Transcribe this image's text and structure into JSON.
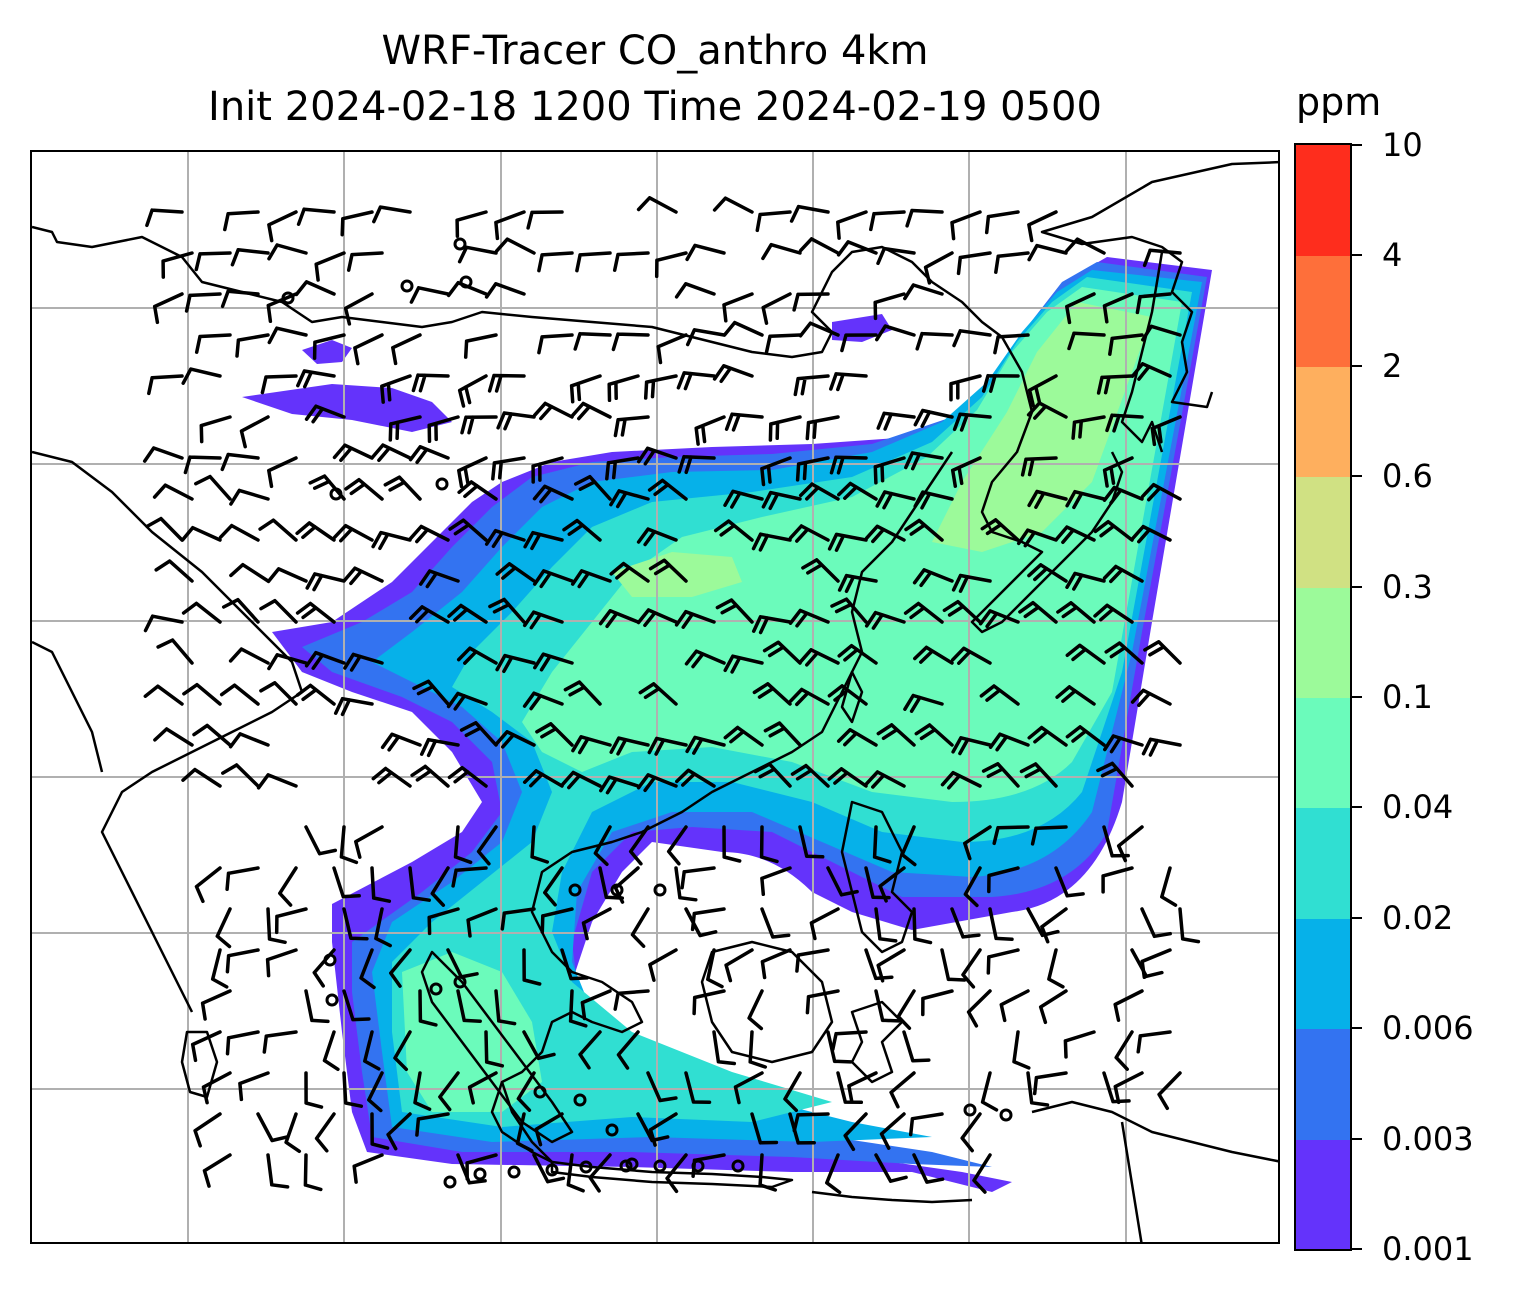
{
  "figure": {
    "title_line1": "WRF-Tracer CO_anthro 4km",
    "title_line2": "Init 2024-02-18 1200 Time 2024-02-19 0500"
  },
  "colorbar": {
    "unit_label": "ppm",
    "ticks": [
      "0.001",
      "0.003",
      "0.006",
      "0.02",
      "0.04",
      "0.1",
      "0.3",
      "0.6",
      "2",
      "4",
      "10"
    ],
    "colors": [
      "#6433fb",
      "#3373f1",
      "#06b1e9",
      "#30dfd2",
      "#6bfbbb",
      "#9cfa9a",
      "#d0e183",
      "#feaf5e",
      "#fe6f3a",
      "#fe2d1d"
    ]
  },
  "map": {
    "gridlines": true,
    "gridline_color": "#b0b0b0",
    "coastline_color": "#000000",
    "tracer_field": "CO_anthro",
    "wind_barbs": true
  }
}
